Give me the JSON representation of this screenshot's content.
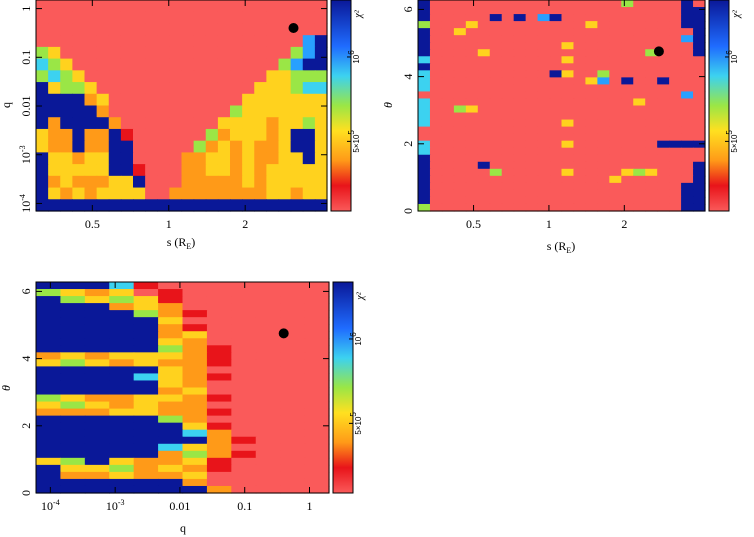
{
  "chart_data": [
    {
      "type": "heatmap",
      "id": "q-vs-s",
      "xlabel": "s (R_E)",
      "ylabel": "q",
      "xscale": "log",
      "yscale": "log",
      "xlim": [
        0.3,
        4.2
      ],
      "ylim": [
        7e-05,
        1.5
      ],
      "x_ticks": [
        {
          "v": 0.5,
          "label": "0.5"
        },
        {
          "v": 1,
          "label": "1"
        },
        {
          "v": 2,
          "label": "2"
        }
      ],
      "y_ticks": [
        {
          "v": 1,
          "label": "1"
        },
        {
          "v": 0.1,
          "label": "0.1"
        },
        {
          "v": 0.01,
          "label": "0.01"
        },
        {
          "v": 0.001,
          "label": "10^-3"
        },
        {
          "v": 0.0001,
          "label": "10^-4"
        }
      ],
      "colorbar": {
        "label": "χ²",
        "ticks": [
          "10^6",
          "5×10^5"
        ]
      },
      "best_fit": {
        "x": 3.1,
        "y": 0.4
      },
      "nx": 24,
      "ny": 18,
      "grid": [
        "RRRRRRRRRRRRRRRRRRRRRRRR",
        "RRRRRRRRRRRRRRRRRRRRRRRR",
        "RRRRRRRRRRRRRRRRRRRRRRRR",
        "RRRRRRRRRRRRRRRRRRRRRRCB",
        "GYRRRRRRRRRRRRRRRRRRRGCB",
        "LGYRRRRRRRRRRRRRRRRRGCBB",
        "GLGYRRRRRRRRRRRRRRRYYGGG",
        "BYGGYRRRRRRRRRRRRRYYYGLL",
        "BBBBOYRRRRRRRRRRRYYYYYYY",
        "BBBBBORRRRRRRRRRGYYYYYYY",
        "BOBBBBORRRRRRRRYYYYOYYGY",
        "YOOBOOBDRRRRRRGOYYYOYBBY",
        "YOOBOOBBRRRRRGOYOYOOYBBY",
        "BYYOYYBBRRRROOYYOYOOYYBY",
        "BYYYYYBBDRRROOYYOYOYYYYY",
        "BOYOOOYYBRRROOOOOYOYYYYY",
        "BYOYOYYYYRROOOOOOOOYYOYY",
        "BBBBBBBBBBBBBBBBBBBBBBBB"
      ]
    },
    {
      "type": "heatmap",
      "id": "theta-vs-s",
      "xlabel": "s (R_E)",
      "ylabel": "θ",
      "xscale": "log",
      "yscale": "linear",
      "xlim": [
        0.3,
        4.2
      ],
      "ylim": [
        0,
        6.28
      ],
      "x_ticks": [
        {
          "v": 0.5,
          "label": "0.5"
        },
        {
          "v": 1,
          "label": "1"
        },
        {
          "v": 2,
          "label": "2"
        }
      ],
      "y_ticks": [
        {
          "v": 0,
          "label": "0"
        },
        {
          "v": 2,
          "label": "2"
        },
        {
          "v": 4,
          "label": "4"
        },
        {
          "v": 6,
          "label": "6"
        }
      ],
      "colorbar": {
        "label": "χ²",
        "ticks": [
          "10^6",
          "5×10^5"
        ]
      },
      "best_fit": {
        "x": 2.75,
        "y": 4.75
      },
      "nx": 24,
      "ny": 30,
      "grid": [
        "BRRRRRRRRRRRRRRRRGRRRRBR",
        "BRRRRRRRRRRRRRRRRRRRRRBB",
        "BRRRRRBRBRCBRRRRRRRRRRBB",
        "GRRRYRRRRRRRRRYRRRRRRRBB",
        "BRRYRRRRRRRRRRRRRRRRRRRB",
        "BRRRRRRRRRRRRRRRRRRRRRCB",
        "BRRRRRRRRRRRYRRRRRRRRRRB",
        "BRRRRYRRRRRRRRRRRRRGRRRB",
        "LRRRRRRRRRRRYRRRRRRRRRRR",
        "BRRRRRRRRRRRRRRRRRRRRRRR",
        "LRRRRRRRRRRBYRRGRRRRRRRR",
        "LRRRRRRRRRRRRRYCRBRRBRRR",
        "LRRRRRRRRRRRRRRRRRRRRRRR",
        "RRRRRRRRRRRRRRRRRRRRRRCR",
        "LRRRRRRRRRRRRRRRRRYRRRRR",
        "LRRGYRRRRRRRRRRRRRRRRRRR",
        "LRRRRRRRRRRRRRRRRRRRRRRR",
        "LRRRRRRRRRRRYRRRRRRRRRRR",
        "RRRRRRRRRRRRRRRRRRRRRRRR",
        "RRRRRRRRRRRRRRRRRRRRRRRR",
        "LRRRRRRRRRRRYRRRRRRRBBBB",
        "LRRRRRRRRRRRRRRRRRRRRRRR",
        "BRRRRRRRRRRRRRRRRRRRRRRR",
        "BRRRRBRRRRRRRRRRRRRRRRRB",
        "BRRRRRGRRRRRYRRRRYGYRRRB",
        "BRRRRRRRRRRRRRRRYRRRRRRB",
        "BRRRRRRRRRRRRRRRRRRRRRBB",
        "BRRRRRRRRRRRRRRRRRRRRRBB",
        "BRRRRRRRRRRRRRRRRRRRRRBB",
        "GRRRRRRRRRRRRRRRRRRRRRBB"
      ]
    },
    {
      "type": "heatmap",
      "id": "theta-vs-q",
      "xlabel": "q",
      "ylabel": "θ",
      "xscale": "log",
      "yscale": "linear",
      "xlim": [
        6e-05,
        2.0
      ],
      "ylim": [
        0,
        6.28
      ],
      "x_ticks": [
        {
          "v": 0.0001,
          "label": "10^-4"
        },
        {
          "v": 0.001,
          "label": "10^-3"
        },
        {
          "v": 0.01,
          "label": "0.01"
        },
        {
          "v": 0.1,
          "label": "0.1"
        },
        {
          "v": 1,
          "label": "1"
        }
      ],
      "y_ticks": [
        {
          "v": 0,
          "label": "0"
        },
        {
          "v": 2,
          "label": "2"
        },
        {
          "v": 4,
          "label": "4"
        },
        {
          "v": 6,
          "label": "6"
        }
      ],
      "colorbar": {
        "label": "χ²",
        "ticks": [
          "10^6",
          "5×10^5"
        ]
      },
      "best_fit": {
        "x": 0.4,
        "y": 4.75
      },
      "nx": 12,
      "ny": 30,
      "grid": [
        "BBBLDRRRRRRR",
        "GYOYRDRRRRRR",
        "BGYGYDRRRRRR",
        "BBBOYORRRRRR",
        "BBBBGODRRRRR",
        "BBBBBYRRRRRR",
        "BBBBBODRRRRR",
        "BBBBBOYRRRRR",
        "BBBBBYORRRRR",
        "BBBBBGODRRRR",
        "OYOYYYODRRRR",
        "YGYOYOODRRRR",
        "BBBBBYORRRRR",
        "BBBBLYODRRRR",
        "BBBBBYORRRRR",
        "BBBBBOYRRRRR",
        "GYOOYYODRRRR",
        "YGYOYOORRRRR",
        "OOOYYOODRRRR",
        "BBBBBGORRRRR",
        "BBBBBBYDRRRR",
        "BBBBBBLORRRR",
        "BBBBBBBODRRR",
        "BBBBBLYORRRR",
        "BBBBBOGODRRR",
        "YGBYOOYDRRRR",
        "BYYGOYODRRRR",
        "BOOYOOYRRRRR",
        "BBBBBBORRRRR",
        "BBBBBBBORRRR"
      ]
    }
  ]
}
